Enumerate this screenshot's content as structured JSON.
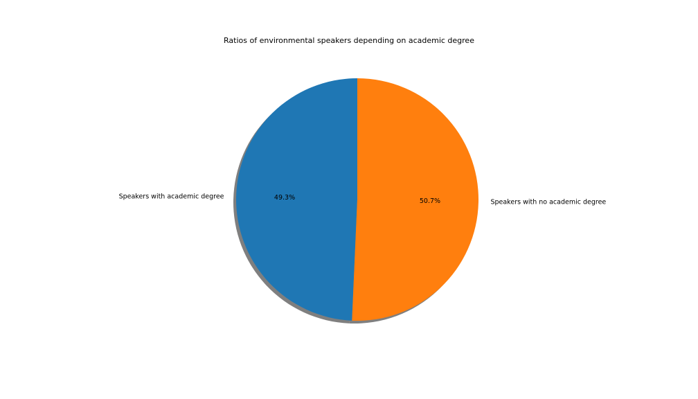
{
  "chart_data": {
    "type": "pie",
    "title": "Ratios of environmental speakers depending on academic degree",
    "slices": [
      {
        "label": "Speakers with academic degree",
        "value": 49.3,
        "pct_label": "49.3%",
        "color": "#1f77b4"
      },
      {
        "label": "Speakers with no academic degree",
        "value": 50.7,
        "pct_label": "50.7%",
        "color": "#ff7f0e"
      }
    ],
    "start_angle_deg": 90,
    "direction": "counterclockwise",
    "shadow": true,
    "shadow_color": "#7f7f7f"
  }
}
